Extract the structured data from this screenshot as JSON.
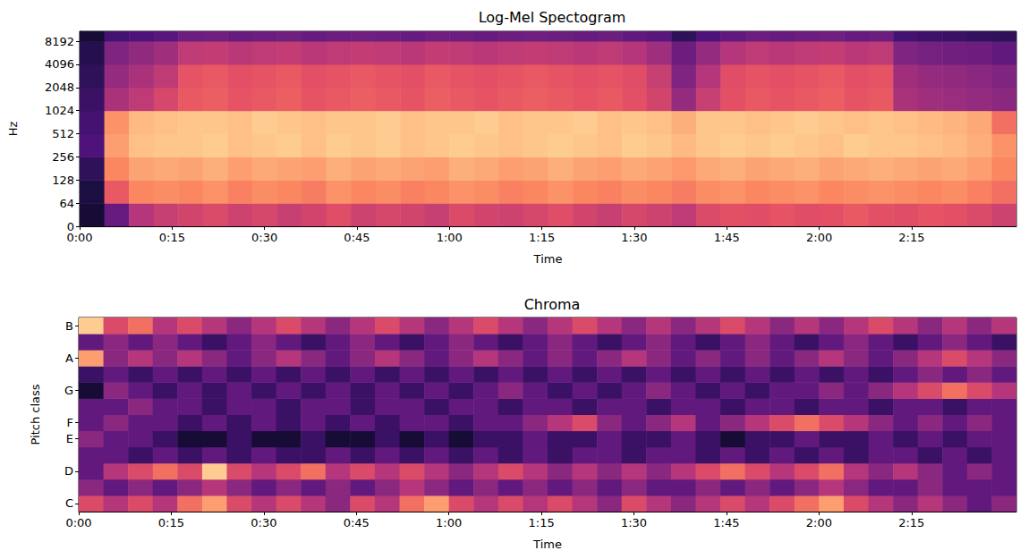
{
  "chart_data": [
    {
      "type": "heatmap",
      "title": "Log-Mel Spectogram",
      "x_label": "Time",
      "y_label": "Hz",
      "x_edges": [
        0,
        4,
        8,
        12,
        16,
        20,
        24,
        28,
        32,
        36,
        40,
        44,
        48,
        52,
        56,
        60,
        64,
        68,
        72,
        76,
        80,
        84,
        88,
        92,
        96,
        100,
        104,
        108,
        112,
        116,
        120,
        124,
        128,
        132,
        136,
        140,
        144,
        148,
        152
      ],
      "y_edges": [
        0,
        64,
        128,
        256,
        512,
        1024,
        2048,
        4096,
        8192,
        11025
      ],
      "cells": [
        [
          -72,
          -55,
          -40,
          -36,
          -34,
          -32,
          -35,
          -33,
          -36,
          -34,
          -31,
          -35,
          -33,
          -34,
          -36,
          -32,
          -34,
          -35,
          -33,
          -31,
          -34,
          -36,
          -33,
          -35,
          -38,
          -32,
          -30,
          -31,
          -29,
          -31,
          -30,
          -28,
          -30,
          -31,
          -29,
          -30,
          -32,
          -35
        ],
        [
          -70,
          -28,
          -20,
          -19,
          -20,
          -18,
          -21,
          -19,
          -20,
          -22,
          -18,
          -20,
          -19,
          -21,
          -20,
          -18,
          -19,
          -21,
          -20,
          -18,
          -20,
          -21,
          -19,
          -20,
          -22,
          -19,
          -18,
          -20,
          -19,
          -18,
          -20,
          -19,
          -18,
          -19,
          -20,
          -19,
          -21,
          -24
        ],
        [
          -66,
          -20,
          -15,
          -14,
          -15,
          -13,
          -16,
          -14,
          -15,
          -16,
          -13,
          -15,
          -14,
          -15,
          -16,
          -13,
          -14,
          -16,
          -15,
          -13,
          -15,
          -16,
          -14,
          -15,
          -17,
          -14,
          -13,
          -15,
          -14,
          -13,
          -15,
          -14,
          -13,
          -14,
          -15,
          -14,
          -16,
          -20
        ],
        [
          -60,
          -16,
          -10,
          -9,
          -9,
          -8,
          -10,
          -9,
          -8,
          -10,
          -8,
          -9,
          -8,
          -10,
          -9,
          -8,
          -9,
          -10,
          -9,
          -8,
          -9,
          -10,
          -8,
          -9,
          -11,
          -9,
          -8,
          -9,
          -8,
          -9,
          -10,
          -8,
          -9,
          -9,
          -10,
          -11,
          -13,
          -18
        ],
        [
          -62,
          -18,
          -11,
          -10,
          -9,
          -9,
          -10,
          -8,
          -9,
          -10,
          -9,
          -9,
          -8,
          -10,
          -9,
          -9,
          -8,
          -10,
          -9,
          -9,
          -8,
          -10,
          -9,
          -10,
          -13,
          -9,
          -9,
          -10,
          -9,
          -8,
          -9,
          -10,
          -9,
          -10,
          -11,
          -12,
          -14,
          -24
        ],
        [
          -64,
          -42,
          -38,
          -33,
          -28,
          -27,
          -29,
          -28,
          -27,
          -29,
          -28,
          -27,
          -28,
          -29,
          -27,
          -28,
          -29,
          -28,
          -27,
          -28,
          -29,
          -28,
          -30,
          -34,
          -46,
          -36,
          -30,
          -28,
          -29,
          -28,
          -27,
          -29,
          -28,
          -42,
          -44,
          -45,
          -46,
          -48
        ],
        [
          -66,
          -46,
          -42,
          -38,
          -29,
          -28,
          -30,
          -29,
          -28,
          -30,
          -29,
          -28,
          -29,
          -30,
          -28,
          -29,
          -30,
          -29,
          -28,
          -29,
          -30,
          -29,
          -31,
          -36,
          -50,
          -40,
          -31,
          -29,
          -30,
          -29,
          -28,
          -30,
          -29,
          -44,
          -46,
          -47,
          -48,
          -50
        ],
        [
          -68,
          -50,
          -47,
          -44,
          -38,
          -37,
          -39,
          -38,
          -37,
          -39,
          -38,
          -37,
          -38,
          -39,
          -37,
          -38,
          -39,
          -38,
          -37,
          -38,
          -39,
          -38,
          -40,
          -44,
          -54,
          -46,
          -40,
          -38,
          -39,
          -38,
          -37,
          -39,
          -38,
          -50,
          -52,
          -53,
          -54,
          -56
        ],
        [
          -72,
          -62,
          -60,
          -58,
          -54,
          -53,
          -55,
          -54,
          -53,
          -55,
          -54,
          -53,
          -54,
          -55,
          -53,
          -54,
          -55,
          -54,
          -53,
          -54,
          -55,
          -54,
          -56,
          -58,
          -66,
          -60,
          -56,
          -54,
          -55,
          -54,
          -53,
          -55,
          -54,
          -62,
          -63,
          -64,
          -65,
          -66
        ]
      ],
      "color_range": [
        -80,
        0
      ],
      "xlim": [
        0,
        152
      ],
      "xticks": [
        {
          "value": 0,
          "label": "0:00"
        },
        {
          "value": 15,
          "label": "0:15"
        },
        {
          "value": 30,
          "label": "0:30"
        },
        {
          "value": 45,
          "label": "0:45"
        },
        {
          "value": 60,
          "label": "1:00"
        },
        {
          "value": 75,
          "label": "1:15"
        },
        {
          "value": 90,
          "label": "1:30"
        },
        {
          "value": 105,
          "label": "1:45"
        },
        {
          "value": 120,
          "label": "2:00"
        },
        {
          "value": 135,
          "label": "2:15"
        }
      ],
      "ylim": [
        0,
        11025
      ],
      "yticks": [
        0,
        64,
        128,
        256,
        512,
        1024,
        2048,
        4096,
        8192
      ]
    },
    {
      "type": "heatmap",
      "title": "Chroma",
      "x_label": "Time",
      "y_label": "Pitch class",
      "x_edges": [
        0,
        4,
        8,
        12,
        16,
        20,
        24,
        28,
        32,
        36,
        40,
        44,
        48,
        52,
        56,
        60,
        64,
        68,
        72,
        76,
        80,
        84,
        88,
        92,
        96,
        100,
        104,
        108,
        112,
        116,
        120,
        124,
        128,
        132,
        136,
        140,
        144,
        148,
        152
      ],
      "categories": [
        "C",
        null,
        "D",
        null,
        "E",
        "F",
        null,
        "G",
        null,
        "A",
        null,
        "B"
      ],
      "cells": [
        [
          0.6,
          0.5,
          0.6,
          0.5,
          0.7,
          0.8,
          0.6,
          0.5,
          0.6,
          0.5,
          0.4,
          0.6,
          0.5,
          0.7,
          0.8,
          0.6,
          0.5,
          0.6,
          0.5,
          0.6,
          0.5,
          0.4,
          0.6,
          0.5,
          0.4,
          0.5,
          0.6,
          0.5,
          0.6,
          0.7,
          0.8,
          0.6,
          0.5,
          0.4,
          0.5,
          0.4,
          0.3,
          0.4
        ],
        [
          0.4,
          0.3,
          0.4,
          0.3,
          0.4,
          0.5,
          0.4,
          0.3,
          0.4,
          0.3,
          0.4,
          0.3,
          0.4,
          0.5,
          0.4,
          0.3,
          0.4,
          0.3,
          0.4,
          0.3,
          0.4,
          0.3,
          0.4,
          0.3,
          0.3,
          0.4,
          0.3,
          0.4,
          0.3,
          0.4,
          0.5,
          0.4,
          0.3,
          0.3,
          0.4,
          0.3,
          0.3,
          0.3
        ],
        [
          0.3,
          0.5,
          0.6,
          0.7,
          0.6,
          0.9,
          0.6,
          0.5,
          0.6,
          0.7,
          0.5,
          0.6,
          0.5,
          0.6,
          0.5,
          0.4,
          0.5,
          0.6,
          0.5,
          0.4,
          0.5,
          0.4,
          0.5,
          0.4,
          0.5,
          0.6,
          0.7,
          0.6,
          0.5,
          0.6,
          0.7,
          0.5,
          0.4,
          0.5,
          0.4,
          0.3,
          0.4,
          0.3
        ],
        [
          0.3,
          0.3,
          0.2,
          0.3,
          0.2,
          0.3,
          0.2,
          0.3,
          0.2,
          0.2,
          0.3,
          0.2,
          0.3,
          0.2,
          0.3,
          0.2,
          0.3,
          0.2,
          0.3,
          0.2,
          0.3,
          0.3,
          0.2,
          0.3,
          0.3,
          0.2,
          0.3,
          0.2,
          0.3,
          0.2,
          0.3,
          0.2,
          0.3,
          0.3,
          0.2,
          0.3,
          0.2,
          0.3
        ],
        [
          0.4,
          0.3,
          0.3,
          0.2,
          0.1,
          0.1,
          0.2,
          0.1,
          0.1,
          0.2,
          0.1,
          0.1,
          0.2,
          0.1,
          0.2,
          0.1,
          0.2,
          0.2,
          0.3,
          0.2,
          0.2,
          0.3,
          0.2,
          0.2,
          0.3,
          0.2,
          0.1,
          0.2,
          0.2,
          0.3,
          0.2,
          0.2,
          0.3,
          0.2,
          0.3,
          0.2,
          0.3,
          0.3
        ],
        [
          0.3,
          0.4,
          0.3,
          0.3,
          0.2,
          0.3,
          0.2,
          0.3,
          0.2,
          0.3,
          0.2,
          0.3,
          0.2,
          0.3,
          0.3,
          0.2,
          0.3,
          0.3,
          0.4,
          0.5,
          0.6,
          0.4,
          0.3,
          0.4,
          0.5,
          0.3,
          0.4,
          0.5,
          0.6,
          0.7,
          0.6,
          0.5,
          0.4,
          0.3,
          0.4,
          0.3,
          0.4,
          0.3
        ],
        [
          0.3,
          0.3,
          0.4,
          0.3,
          0.3,
          0.2,
          0.3,
          0.3,
          0.2,
          0.3,
          0.3,
          0.2,
          0.3,
          0.3,
          0.2,
          0.3,
          0.3,
          0.2,
          0.3,
          0.3,
          0.2,
          0.3,
          0.3,
          0.2,
          0.3,
          0.3,
          0.2,
          0.3,
          0.3,
          0.2,
          0.3,
          0.3,
          0.2,
          0.3,
          0.3,
          0.2,
          0.3,
          0.3
        ],
        [
          0.1,
          0.4,
          0.3,
          0.2,
          0.3,
          0.2,
          0.3,
          0.2,
          0.3,
          0.2,
          0.3,
          0.2,
          0.3,
          0.2,
          0.3,
          0.2,
          0.3,
          0.4,
          0.3,
          0.2,
          0.3,
          0.2,
          0.3,
          0.4,
          0.3,
          0.2,
          0.3,
          0.2,
          0.3,
          0.3,
          0.4,
          0.3,
          0.4,
          0.5,
          0.6,
          0.7,
          0.6,
          0.5
        ],
        [
          0.2,
          0.3,
          0.2,
          0.3,
          0.2,
          0.3,
          0.2,
          0.3,
          0.2,
          0.3,
          0.2,
          0.3,
          0.2,
          0.3,
          0.2,
          0.3,
          0.2,
          0.3,
          0.2,
          0.3,
          0.2,
          0.3,
          0.2,
          0.3,
          0.2,
          0.3,
          0.2,
          0.3,
          0.2,
          0.3,
          0.2,
          0.3,
          0.2,
          0.3,
          0.4,
          0.3,
          0.4,
          0.3
        ],
        [
          0.8,
          0.4,
          0.5,
          0.4,
          0.5,
          0.4,
          0.3,
          0.4,
          0.5,
          0.4,
          0.3,
          0.4,
          0.5,
          0.4,
          0.3,
          0.4,
          0.5,
          0.4,
          0.3,
          0.4,
          0.3,
          0.4,
          0.5,
          0.4,
          0.3,
          0.4,
          0.3,
          0.4,
          0.3,
          0.4,
          0.5,
          0.4,
          0.3,
          0.4,
          0.5,
          0.6,
          0.5,
          0.4
        ],
        [
          0.3,
          0.4,
          0.3,
          0.4,
          0.3,
          0.2,
          0.3,
          0.4,
          0.3,
          0.2,
          0.3,
          0.4,
          0.3,
          0.2,
          0.3,
          0.4,
          0.3,
          0.2,
          0.3,
          0.4,
          0.3,
          0.2,
          0.3,
          0.4,
          0.3,
          0.2,
          0.3,
          0.4,
          0.3,
          0.2,
          0.3,
          0.4,
          0.3,
          0.2,
          0.3,
          0.4,
          0.3,
          0.2
        ],
        [
          0.9,
          0.6,
          0.7,
          0.5,
          0.6,
          0.5,
          0.4,
          0.5,
          0.6,
          0.5,
          0.4,
          0.5,
          0.6,
          0.5,
          0.4,
          0.5,
          0.6,
          0.5,
          0.4,
          0.5,
          0.6,
          0.5,
          0.4,
          0.5,
          0.4,
          0.5,
          0.6,
          0.5,
          0.4,
          0.5,
          0.4,
          0.5,
          0.6,
          0.5,
          0.4,
          0.5,
          0.4,
          0.5
        ]
      ],
      "color_range": [
        0,
        1
      ],
      "xlim": [
        0,
        152
      ],
      "xticks": [
        {
          "value": 0,
          "label": "0:00"
        },
        {
          "value": 15,
          "label": "0:15"
        },
        {
          "value": 30,
          "label": "0:30"
        },
        {
          "value": 45,
          "label": "0:45"
        },
        {
          "value": 60,
          "label": "1:00"
        },
        {
          "value": 75,
          "label": "1:15"
        },
        {
          "value": 90,
          "label": "1:30"
        },
        {
          "value": 105,
          "label": "1:45"
        },
        {
          "value": 120,
          "label": "2:00"
        },
        {
          "value": 135,
          "label": "2:15"
        }
      ]
    }
  ]
}
